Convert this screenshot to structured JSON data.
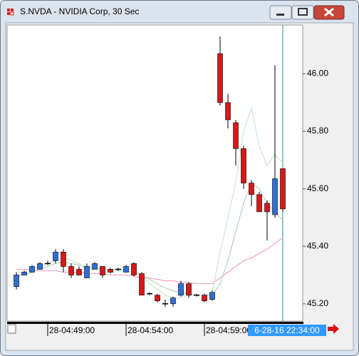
{
  "chart_data": {
    "type": "candlestick",
    "title": "S.NVDA - NVIDIA Corp, 30 Sec",
    "categories": [
      null,
      null,
      null,
      null,
      "28-04:49:00",
      null,
      null,
      null,
      null,
      null,
      null,
      null,
      null,
      null,
      "28-04:54:00",
      null,
      null,
      null,
      null,
      null,
      null,
      null,
      null,
      null,
      "28-04:59:00",
      null,
      null,
      null,
      null,
      null,
      null,
      null,
      null,
      null,
      "6-28-16 22:34:00"
    ],
    "open": [
      45.26,
      45.3,
      45.31,
      45.32,
      45.34,
      45.35,
      45.38,
      45.33,
      45.32,
      45.29,
      45.32,
      45.33,
      45.32,
      45.32,
      45.31,
      45.34,
      45.305,
      45.235,
      45.23,
      45.2,
      45.2,
      45.23,
      45.27,
      45.23,
      45.23,
      45.215,
      46.07,
      45.9,
      45.83,
      45.74,
      45.62,
      45.58,
      45.55,
      45.51,
      45.67
    ],
    "high": [
      45.31,
      45.315,
      45.335,
      45.345,
      45.35,
      45.39,
      45.39,
      45.34,
      45.33,
      45.34,
      45.345,
      45.33,
      45.325,
      45.325,
      45.335,
      45.345,
      45.31,
      45.24,
      45.235,
      45.215,
      45.225,
      45.28,
      45.275,
      45.235,
      45.235,
      45.245,
      46.13,
      45.93,
      45.84,
      45.75,
      45.63,
      45.59,
      45.56,
      46.03,
      45.67
    ],
    "low": [
      45.25,
      45.3,
      45.31,
      45.32,
      45.335,
      45.34,
      45.31,
      45.29,
      45.3,
      45.29,
      45.32,
      45.29,
      45.305,
      45.315,
      45.31,
      45.295,
      45.23,
      45.23,
      45.205,
      45.19,
      45.19,
      45.225,
      45.22,
      45.225,
      45.205,
      45.21,
      45.89,
      45.81,
      45.68,
      45.6,
      45.54,
      45.52,
      45.42,
      45.5,
      45.52
    ],
    "close": [
      45.3,
      45.31,
      45.33,
      45.34,
      45.34,
      45.38,
      45.33,
      45.3,
      45.3,
      45.33,
      45.34,
      45.3,
      45.31,
      45.32,
      45.33,
      45.3,
      45.23,
      45.235,
      45.21,
      45.2,
      45.22,
      45.27,
      45.23,
      45.23,
      45.21,
      45.24,
      45.9,
      45.84,
      45.74,
      45.62,
      45.58,
      45.52,
      45.52,
      45.635,
      45.53
    ],
    "up_color": "#2f6fd8",
    "down_color": "#d81818",
    "doji_color": "#000000",
    "overlays": [
      {
        "color": "#f4a6c8",
        "values": [
          45.32,
          45.32,
          45.32,
          45.315,
          45.315,
          45.315,
          45.31,
          45.31,
          45.31,
          45.305,
          45.305,
          45.305,
          45.3,
          45.3,
          45.3,
          45.295,
          45.29,
          45.29,
          45.285,
          45.28,
          45.28,
          45.275,
          45.275,
          45.27,
          45.27,
          45.27,
          45.29,
          45.31,
          45.33,
          45.35,
          45.36,
          45.375,
          45.39,
          45.41,
          45.43
        ]
      },
      {
        "color": "#b8d8c0",
        "values": [
          45.3,
          45.3,
          45.31,
          45.32,
          45.33,
          45.34,
          45.345,
          45.34,
          45.335,
          45.33,
          45.325,
          45.32,
          45.32,
          45.315,
          45.315,
          45.31,
          45.3,
          45.285,
          45.27,
          45.255,
          45.245,
          45.24,
          45.235,
          45.23,
          45.23,
          45.23,
          45.27,
          45.35,
          45.45,
          45.55,
          45.62,
          45.6,
          45.55,
          45.52,
          45.49
        ]
      },
      {
        "color": "#cfe8d2",
        "values": [
          45.31,
          45.31,
          45.32,
          45.33,
          45.34,
          45.35,
          45.36,
          45.35,
          45.34,
          45.32,
          45.32,
          45.32,
          45.32,
          45.32,
          45.32,
          45.32,
          45.3,
          45.27,
          45.25,
          45.23,
          45.22,
          45.22,
          45.23,
          45.23,
          45.23,
          45.24,
          45.38,
          45.5,
          45.62,
          45.8,
          45.88,
          45.75,
          45.68,
          45.72,
          45.69
        ]
      }
    ],
    "ylim": [
      45.14,
      46.17
    ],
    "yticks": [
      {
        "value": 45.2,
        "label": "45.20"
      },
      {
        "value": 45.4,
        "label": "45.40"
      },
      {
        "value": 45.6,
        "label": "45.60"
      },
      {
        "value": 45.8,
        "label": "45.80"
      },
      {
        "value": 46.0,
        "label": "46.00"
      }
    ],
    "crosshair": true
  }
}
